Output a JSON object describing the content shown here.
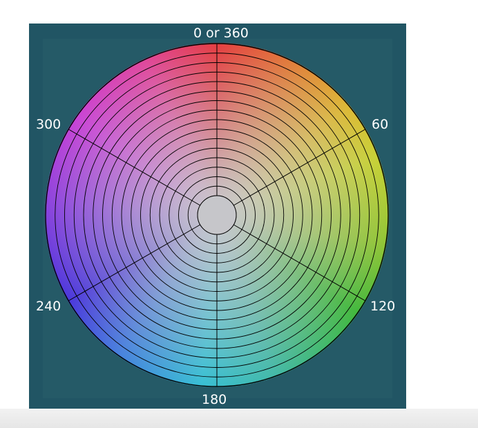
{
  "diagram": {
    "labels": {
      "top": "0 or 360",
      "upper_right": "60",
      "lower_right": "120",
      "bottom": "180",
      "lower_left": "240",
      "upper_left": "300"
    },
    "colors": {
      "panel_background": "#215564",
      "line_color": "#000000",
      "center_color": "#c6c6ca",
      "label_color": "#ffffff"
    }
  }
}
